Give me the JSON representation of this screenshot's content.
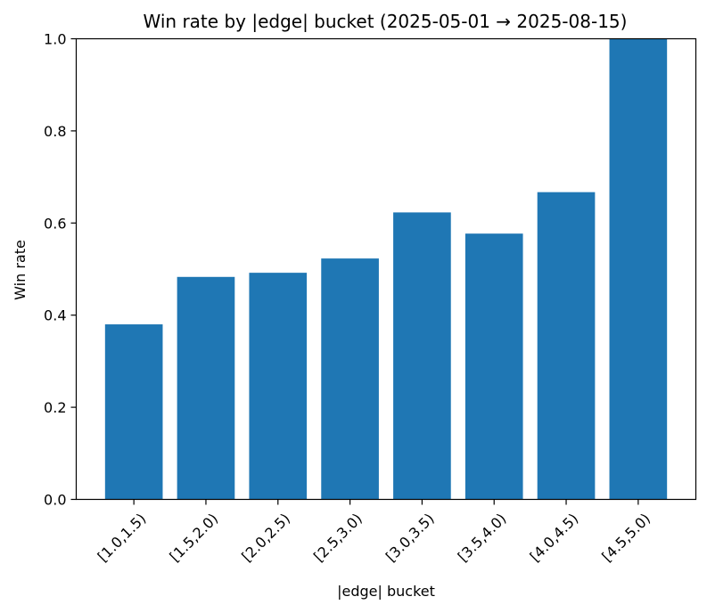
{
  "chart_data": {
    "type": "bar",
    "title": "Win rate by |edge| bucket (2025-05-01 → 2025-08-15)",
    "xlabel": "|edge| bucket",
    "ylabel": "Win rate",
    "categories": [
      "[1.0,1.5)",
      "[1.5,2.0)",
      "[2.0,2.5)",
      "[2.5,3.0)",
      "[3.0,3.5)",
      "[3.5,4.0)",
      "[4.0,4.5)",
      "[4.5,5.0)"
    ],
    "values": [
      0.38,
      0.483,
      0.492,
      0.523,
      0.623,
      0.577,
      0.667,
      1.0
    ],
    "ylim": [
      0,
      1.0
    ],
    "yticks": [
      0.0,
      0.2,
      0.4,
      0.6,
      0.8,
      1.0
    ],
    "ytick_labels": [
      "0.0",
      "0.2",
      "0.4",
      "0.6",
      "0.8",
      "1.0"
    ],
    "bar_color": "#1f77b4",
    "grid": false,
    "legend": "none"
  }
}
